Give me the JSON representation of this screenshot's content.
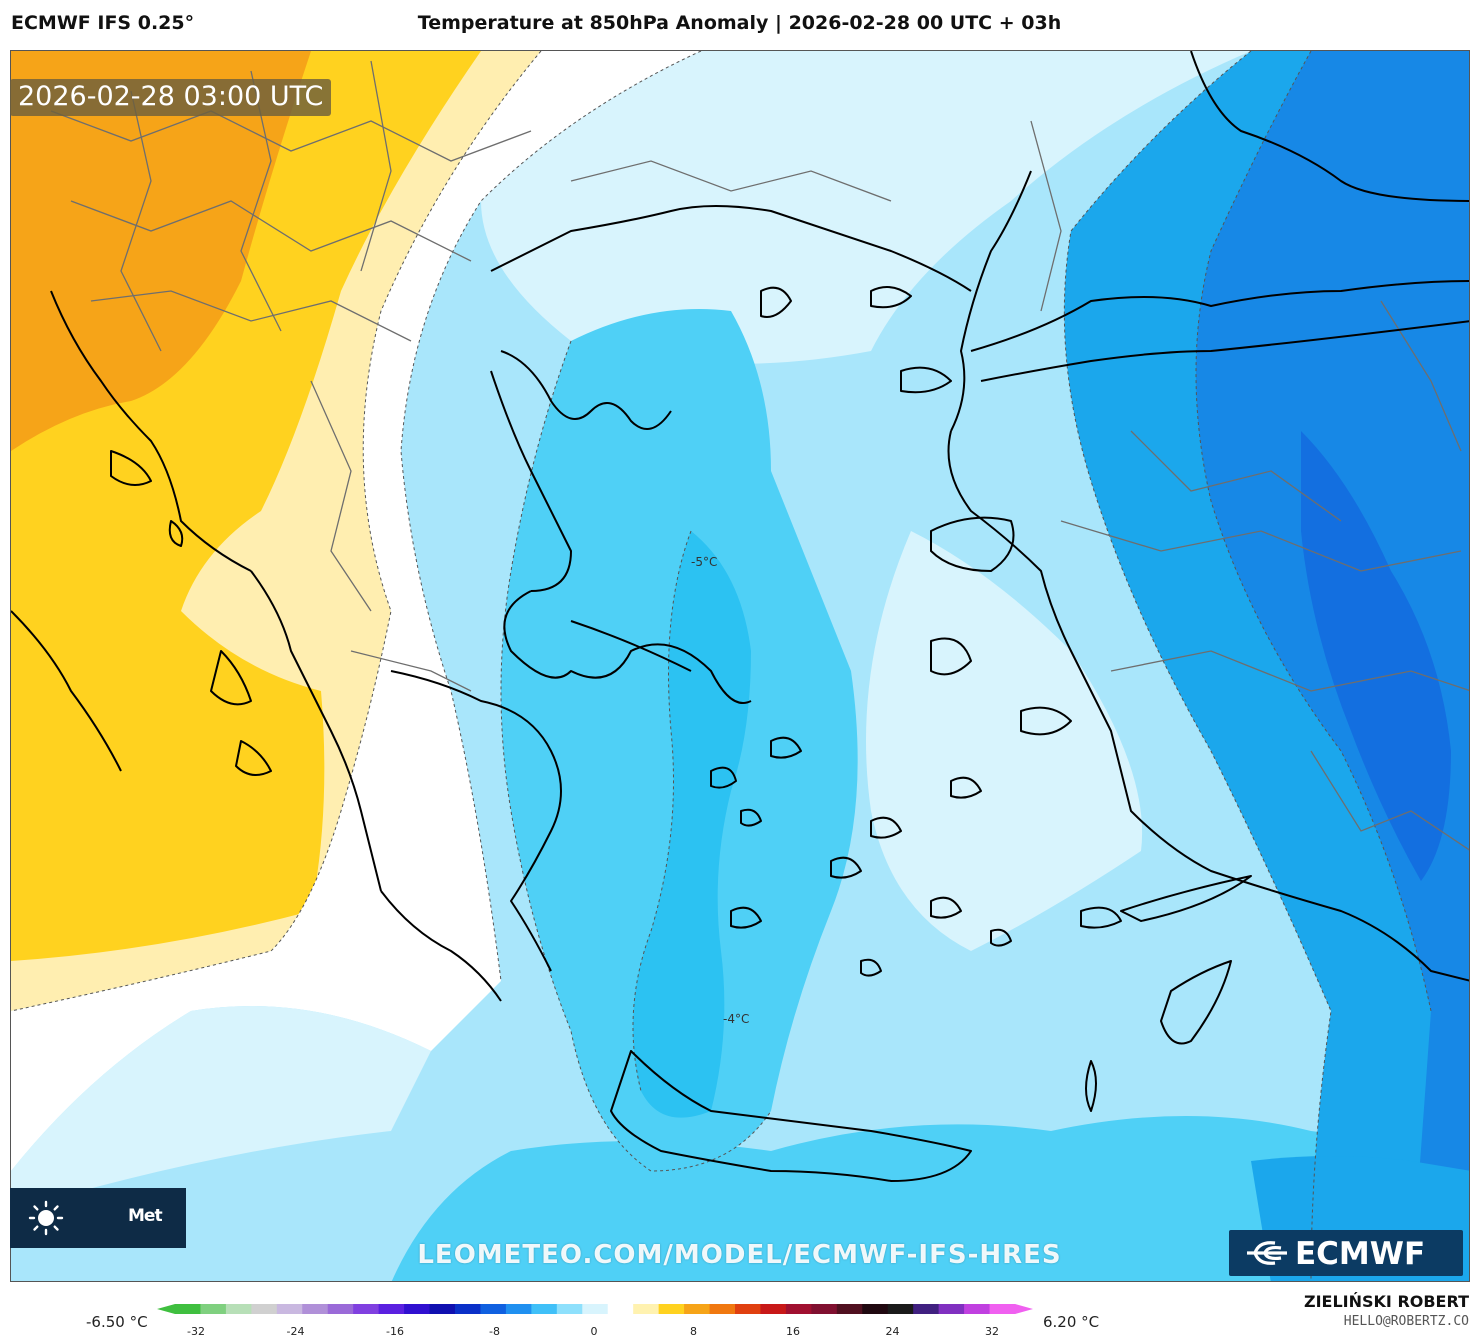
{
  "header": {
    "model": "ECMWF IFS 0.25°",
    "title": "Temperature at 850hPa Anomaly | 2026-02-28 00 UTC + 03h"
  },
  "map": {
    "valid_time": "2026-02-28 03:00 UTC",
    "contour_labels": [
      "-5°C",
      "-4°C"
    ],
    "colors": {
      "warm_orange": "#f6a418",
      "warm_yellow": "#ffd21f",
      "pale_yellow": "#ffeeb0",
      "neutral_white": "#ffffff",
      "pale_blue": "#d8f4fd",
      "light_blue": "#a9e6fb",
      "cyan": "#4fd0f6",
      "cyan_deep": "#2cc2f2",
      "azure": "#1ba7ec",
      "blue": "#1788e6",
      "deep_blue": "#136fe0",
      "coastline": "#000000",
      "border": "#555555"
    }
  },
  "branding": {
    "provider_box_text": "Met",
    "provider_icon": "sun-icon",
    "watermark_url": "LEOMETEO.COM/MODEL/ECMWF-IFS-HRES",
    "ecmwf_logo_text": "ECMWF"
  },
  "colorbar": {
    "min_label": "-6.50 °C",
    "max_label": "6.20 °C",
    "ticks": [
      "-32",
      "-24",
      "-16",
      "-8",
      "0",
      "8",
      "16",
      "24",
      "32"
    ]
  },
  "credits": {
    "author": "ZIELIŃSKI ROBERT",
    "email": "HELLO@ROBERTZ.CO"
  }
}
